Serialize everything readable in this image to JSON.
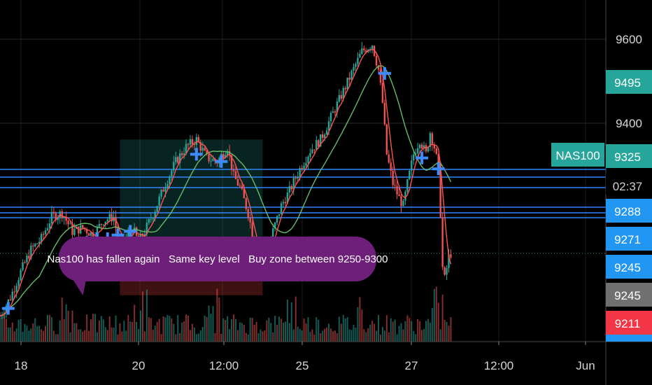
{
  "chart_data": {
    "type": "candlestick",
    "symbol_label": "NAS100",
    "y_ticks": [
      9400,
      9600
    ],
    "x_tick_labels": [
      "18",
      "20",
      "12:00",
      "25",
      "27",
      "12:00",
      "Jun"
    ],
    "price_tags": [
      {
        "text": "9495",
        "kind": "green"
      },
      {
        "text": "9325",
        "kind": "teal"
      },
      {
        "text": "02:37",
        "kind": "countdown"
      },
      {
        "text": "9288",
        "kind": "blue"
      },
      {
        "text": "9271",
        "kind": "blue"
      },
      {
        "text": "9245",
        "kind": "blue"
      },
      {
        "text": "9245",
        "kind": "gray"
      },
      {
        "text": "9211",
        "kind": "red"
      }
    ],
    "close_path": [
      [
        0,
        9240
      ],
      [
        5,
        9265
      ],
      [
        10,
        9300
      ],
      [
        15,
        9330
      ],
      [
        20,
        9345
      ],
      [
        25,
        9375
      ],
      [
        30,
        9380
      ],
      [
        35,
        9355
      ],
      [
        40,
        9360
      ],
      [
        45,
        9350
      ],
      [
        50,
        9370
      ],
      [
        55,
        9375
      ],
      [
        58,
        9330
      ],
      [
        61,
        9345
      ],
      [
        64,
        9360
      ],
      [
        67,
        9340
      ],
      [
        70,
        9355
      ],
      [
        75,
        9385
      ],
      [
        80,
        9420
      ],
      [
        85,
        9450
      ],
      [
        90,
        9470
      ],
      [
        95,
        9480
      ],
      [
        100,
        9455
      ],
      [
        105,
        9450
      ],
      [
        110,
        9470
      ],
      [
        113,
        9430
      ],
      [
        116,
        9415
      ],
      [
        120,
        9380
      ],
      [
        123,
        9340
      ],
      [
        126,
        9310
      ],
      [
        129,
        9325
      ],
      [
        132,
        9355
      ],
      [
        136,
        9390
      ],
      [
        140,
        9410
      ],
      [
        145,
        9440
      ],
      [
        150,
        9465
      ],
      [
        155,
        9480
      ],
      [
        160,
        9510
      ],
      [
        165,
        9540
      ],
      [
        170,
        9570
      ],
      [
        175,
        9600
      ],
      [
        180,
        9610
      ],
      [
        183,
        9575
      ],
      [
        185,
        9530
      ],
      [
        187,
        9460
      ],
      [
        190,
        9420
      ],
      [
        193,
        9400
      ],
      [
        195,
        9390
      ],
      [
        197,
        9420
      ],
      [
        200,
        9460
      ],
      [
        203,
        9480
      ],
      [
        206,
        9460
      ],
      [
        208,
        9490
      ],
      [
        210,
        9470
      ],
      [
        212,
        9440
      ],
      [
        213,
        9380
      ],
      [
        214,
        9305
      ],
      [
        215,
        9290
      ],
      [
        216,
        9305
      ],
      [
        217,
        9320
      ],
      [
        218,
        9325
      ]
    ],
    "cross_markers": [
      [
        4,
        9250
      ],
      [
        42,
        9340
      ],
      [
        47,
        9345
      ],
      [
        52,
        9345
      ],
      [
        57,
        9350
      ],
      [
        63,
        9355
      ],
      [
        95,
        9460
      ],
      [
        107,
        9450
      ],
      [
        130,
        9335
      ],
      [
        186,
        9570
      ],
      [
        204,
        9455
      ],
      [
        212,
        9440
      ]
    ],
    "x_index_max": 320,
    "y_axis_range": [
      9205,
      9670
    ],
    "volume_max": 100,
    "horizontal_levels": [
      9288,
      9271,
      9245
    ],
    "zones": [
      {
        "kind": "buy",
        "x_index_from": 58,
        "x_index_to": 127,
        "price_from": 9305,
        "price_to": 9480
      },
      {
        "kind": "stop",
        "x_index_from": 58,
        "x_index_to": 127,
        "price_from": 9268,
        "price_to": 9305
      }
    ],
    "grid": true,
    "annotation": "Nas100 has fallen again   Same key level   Buy zone between 9250-9300"
  }
}
